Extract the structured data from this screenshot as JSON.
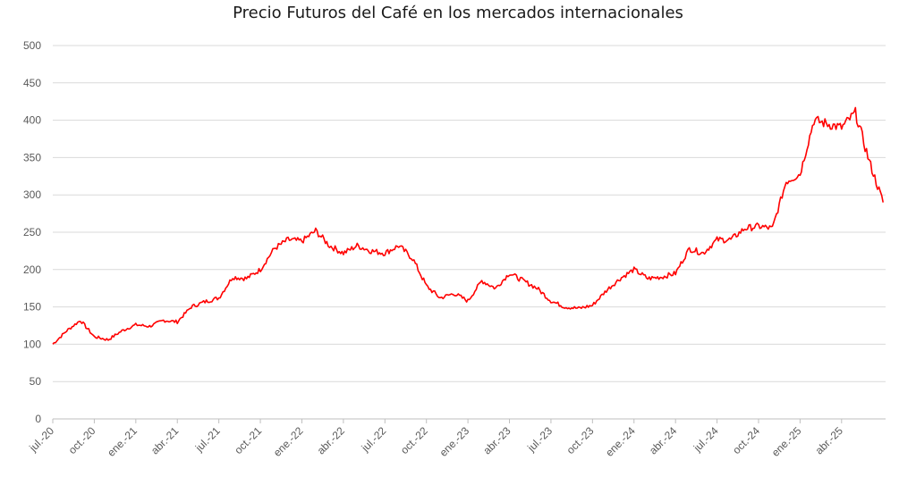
{
  "chart_data": {
    "type": "line",
    "title": "Precio Futuros del Café en los mercados internacionales",
    "xlabel": "",
    "ylabel": "",
    "ylim": [
      0,
      500
    ],
    "yticks": [
      0,
      50,
      100,
      150,
      200,
      250,
      300,
      350,
      400,
      450,
      500
    ],
    "xticks": [
      "jul.-20",
      "oct.-20",
      "ene.-21",
      "abr.-21",
      "jul.-21",
      "oct.-21",
      "ene.-22",
      "abr.-22",
      "jul.-22",
      "oct.-22",
      "ene.-23",
      "abr.-23",
      "jul.-23",
      "oct.-23",
      "ene.-24",
      "abr.-24",
      "jul.-24",
      "oct.-24",
      "ene.-25",
      "abr.-25"
    ],
    "grid": true,
    "legend": "none",
    "line_color": "#ff0000",
    "series": [
      {
        "x": [
          "jul.-20",
          "ago.-20",
          "sep.-20",
          "oct.-20",
          "nov.-20",
          "dic.-20",
          "ene.-21",
          "feb.-21",
          "mar.-21",
          "abr.-21",
          "may.-21",
          "jun.-21",
          "jul.-21",
          "ago.-21",
          "sep.-21",
          "oct.-21",
          "nov.-21",
          "dic.-21",
          "ene.-22",
          "feb.-22",
          "mar.-22",
          "abr.-22",
          "may.-22",
          "jun.-22",
          "jul.-22",
          "ago.-22",
          "sep.-22",
          "oct.-22",
          "nov.-22",
          "dic.-22",
          "ene.-23",
          "feb.-23",
          "mar.-23",
          "abr.-23",
          "may.-23",
          "jun.-23",
          "jul.-23",
          "ago.-23",
          "sep.-23",
          "oct.-23",
          "nov.-23",
          "dic.-23",
          "ene.-24",
          "feb.-24",
          "mar.-24",
          "abr.-24",
          "may.-24",
          "jun.-24",
          "jul.-24",
          "ago.-24",
          "sep.-24",
          "oct.-24",
          "nov.-24",
          "dic.-24",
          "ene.-25",
          "feb.-25",
          "mar.-25",
          "abr.-25",
          "may.-25",
          "jun.-25",
          "jul.-25"
        ],
        "values": [
          100,
          118,
          132,
          110,
          106,
          118,
          126,
          124,
          132,
          130,
          150,
          157,
          162,
          190,
          188,
          200,
          228,
          240,
          238,
          252,
          232,
          222,
          232,
          225,
          222,
          232,
          215,
          178,
          162,
          168,
          158,
          185,
          175,
          195,
          185,
          175,
          158,
          150,
          148,
          152,
          172,
          188,
          200,
          188,
          190,
          195,
          228,
          222,
          240,
          240,
          255,
          258,
          255,
          318,
          328,
          400,
          395,
          390,
          410,
          345,
          290
        ]
      }
    ]
  }
}
